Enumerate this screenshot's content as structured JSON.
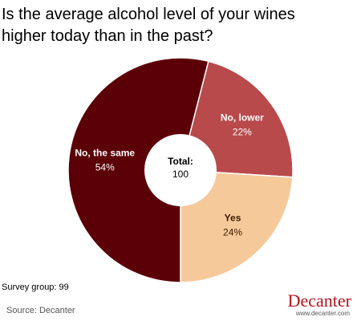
{
  "chart_data": {
    "type": "donut",
    "title_lines": [
      "Is the average alcohol level of your wines",
      "higher today than in the past?"
    ],
    "categories": [
      "No, lower",
      "Yes",
      "No, the same"
    ],
    "values": [
      22,
      24,
      54
    ],
    "value_labels": [
      "22%",
      "24%",
      "54%"
    ],
    "colors": [
      "#b84a4b",
      "#f6c99b",
      "#5b0007"
    ],
    "label_colors": [
      "#ffffff",
      "#3a1a00",
      "#ffffff"
    ],
    "total": {
      "label": "Total:",
      "value": 100
    },
    "note": "Survey group: 99",
    "source": "Source: Decanter",
    "logo": {
      "name": "Decanter",
      "url": "www.decanter.com"
    }
  }
}
